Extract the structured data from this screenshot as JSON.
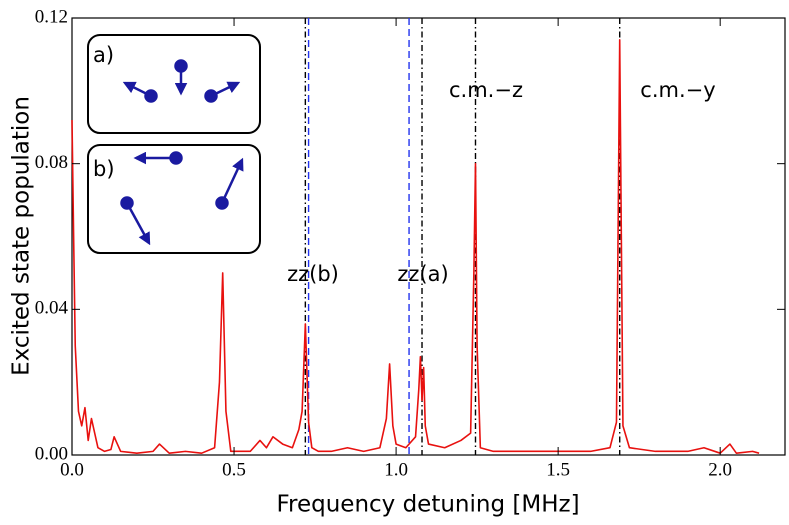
{
  "chart_data": {
    "type": "line",
    "xlabel": "Frequency detuning [MHz]",
    "ylabel": "Excited state population",
    "x": [
      0,
      0.005,
      0.01,
      0.02,
      0.03,
      0.04,
      0.05,
      0.06,
      0.08,
      0.1,
      0.12,
      0.13,
      0.15,
      0.2,
      0.25,
      0.27,
      0.3,
      0.35,
      0.4,
      0.44,
      0.455,
      0.465,
      0.475,
      0.49,
      0.55,
      0.58,
      0.6,
      0.62,
      0.65,
      0.68,
      0.7,
      0.71,
      0.72,
      0.73,
      0.74,
      0.76,
      0.8,
      0.85,
      0.9,
      0.95,
      0.97,
      0.98,
      0.99,
      1.0,
      1.03,
      1.06,
      1.07,
      1.075,
      1.08,
      1.085,
      1.09,
      1.1,
      1.15,
      1.2,
      1.23,
      1.24,
      1.245,
      1.25,
      1.26,
      1.3,
      1.4,
      1.5,
      1.6,
      1.66,
      1.68,
      1.69,
      1.695,
      1.7,
      1.72,
      1.8,
      1.9,
      1.95,
      2.0,
      2.03,
      2.05,
      2.1,
      2.12
    ],
    "values": [
      0.092,
      0.06,
      0.03,
      0.012,
      0.008,
      0.013,
      0.004,
      0.01,
      0.002,
      0.001,
      0.0015,
      0.005,
      0.001,
      0.0005,
      0.001,
      0.003,
      0.0005,
      0.001,
      0.0005,
      0.002,
      0.02,
      0.05,
      0.012,
      0.001,
      0.001,
      0.004,
      0.002,
      0.005,
      0.003,
      0.002,
      0.007,
      0.012,
      0.036,
      0.009,
      0.002,
      0.001,
      0.001,
      0.002,
      0.001,
      0.002,
      0.01,
      0.025,
      0.008,
      0.003,
      0.002,
      0.005,
      0.018,
      0.027,
      0.015,
      0.024,
      0.008,
      0.003,
      0.002,
      0.004,
      0.006,
      0.05,
      0.08,
      0.03,
      0.002,
      0.001,
      0.001,
      0.001,
      0.001,
      0.002,
      0.009,
      0.114,
      0.06,
      0.008,
      0.002,
      0.001,
      0.001,
      0.002,
      0.0005,
      0.003,
      0.0005,
      0.001,
      0.0005
    ],
    "color": "#e8110f",
    "xlim": [
      0,
      2.2
    ],
    "ylim": [
      0,
      0.12
    ],
    "xticks": [
      {
        "value": 0,
        "label": "0.0"
      },
      {
        "value": 0.5,
        "label": "0.5"
      },
      {
        "value": 1,
        "label": "1.0"
      },
      {
        "value": 1.5,
        "label": "1.5"
      },
      {
        "value": 2,
        "label": "2.0"
      }
    ],
    "yticks": [
      {
        "value": 0,
        "label": "0.00"
      },
      {
        "value": 0.04,
        "label": "0.04"
      },
      {
        "value": 0.08,
        "label": "0.08"
      },
      {
        "value": 0.12,
        "label": "0.12"
      }
    ],
    "grid": false,
    "reference_lines": [
      {
        "x": 0.72,
        "color": "#000000",
        "style": "dashdot"
      },
      {
        "x": 1.08,
        "color": "#000000",
        "style": "dashdot"
      },
      {
        "x": 1.245,
        "color": "#000000",
        "style": "dashdot"
      },
      {
        "x": 1.69,
        "color": "#000000",
        "style": "dashdot"
      },
      {
        "x": 0.73,
        "color": "#2233ee",
        "style": "dashed"
      },
      {
        "x": 1.04,
        "color": "#2233ee",
        "style": "dashed"
      }
    ],
    "annotations": [
      "zz(b)",
      "zz(a)",
      "c.m.−z",
      "c.m.−y"
    ],
    "inset_labels": [
      "a)",
      "b)"
    ]
  }
}
